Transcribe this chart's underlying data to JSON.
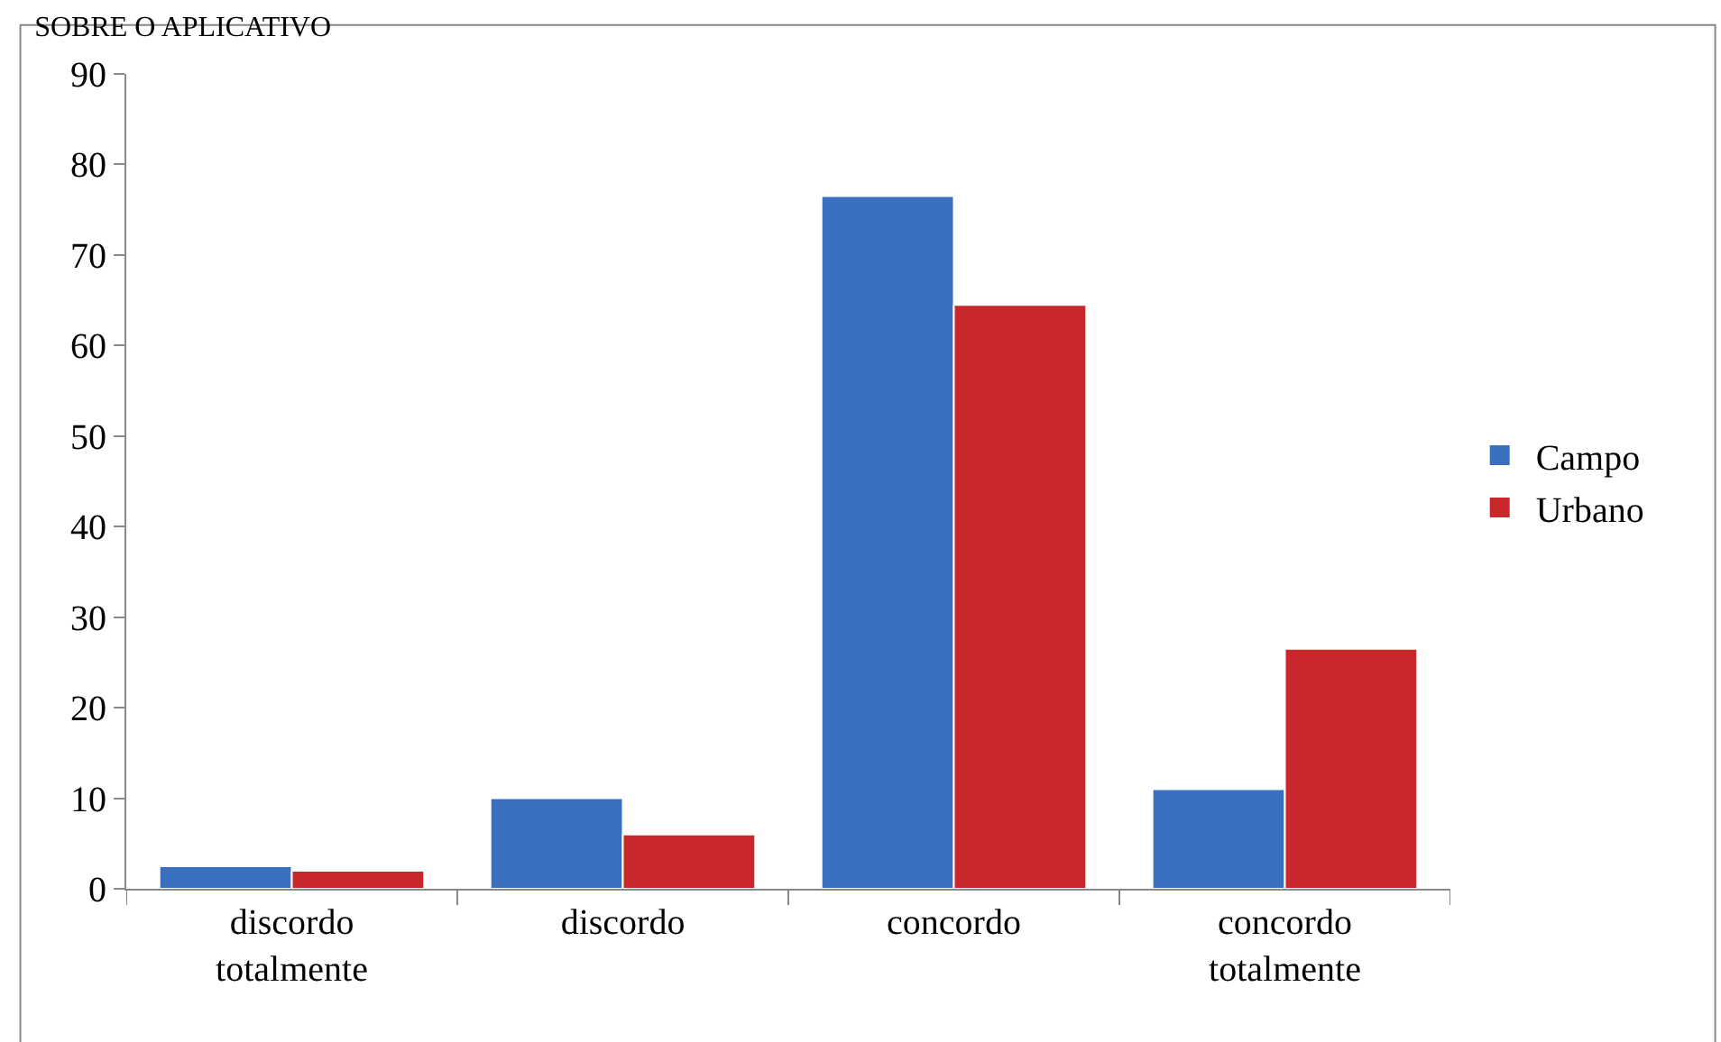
{
  "chart_data": {
    "type": "bar",
    "title": "SOBRE O APLICATIVO",
    "categories": [
      "discordo totalmente",
      "discordo",
      "concordo",
      "concordo totalmente"
    ],
    "series": [
      {
        "name": "Campo",
        "color": "#3a6fc0",
        "values": [
          2.5,
          10,
          76.5,
          11
        ]
      },
      {
        "name": "Urbano",
        "color": "#c8282c",
        "values": [
          2,
          6,
          64.5,
          26.5
        ]
      }
    ],
    "ylim": [
      0,
      90
    ],
    "yticks": [
      0,
      10,
      20,
      30,
      40,
      50,
      60,
      70,
      80,
      90
    ],
    "legend": "right"
  }
}
